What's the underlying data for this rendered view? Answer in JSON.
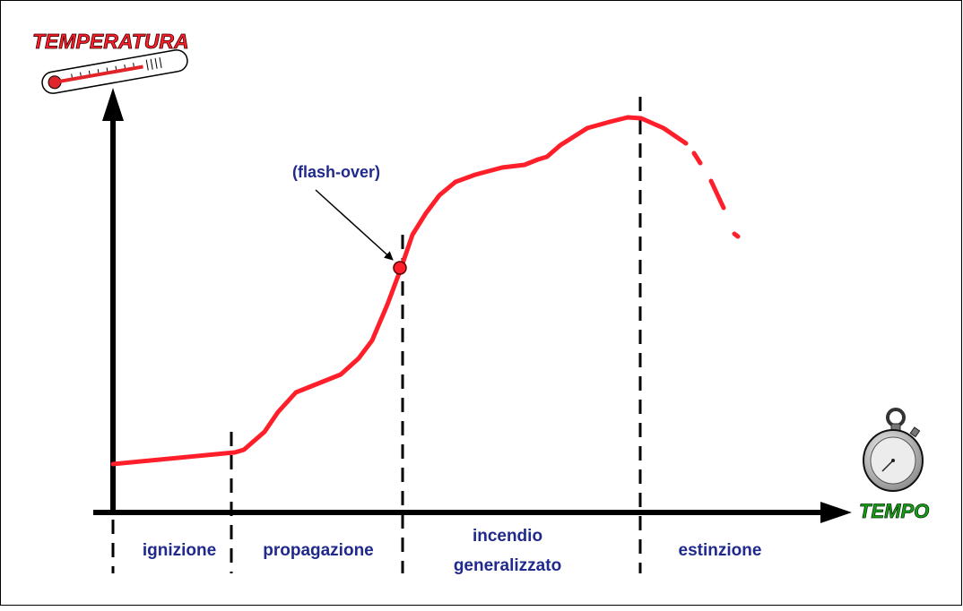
{
  "y_axis": {
    "label": "TEMPERATURA"
  },
  "x_axis": {
    "label": "TEMPO"
  },
  "annotation": "(flash-over)",
  "phases": [
    {
      "lines": [
        "ignizione"
      ]
    },
    {
      "lines": [
        "propagazione"
      ]
    },
    {
      "lines": [
        "incendio",
        "generalizzato"
      ]
    },
    {
      "lines": [
        "estinzione"
      ]
    }
  ]
}
